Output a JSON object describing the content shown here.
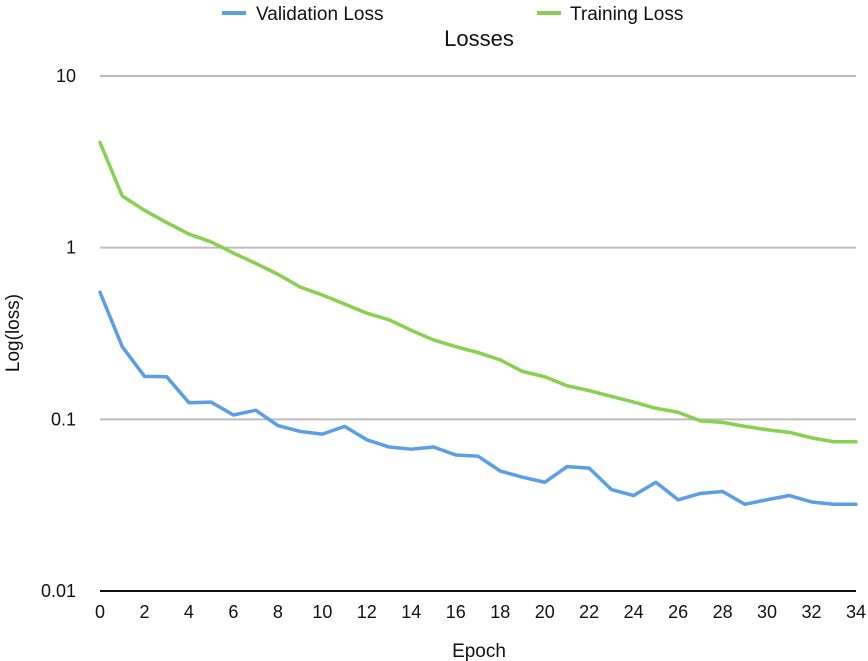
{
  "chart_data": {
    "type": "line",
    "title": "Losses",
    "xlabel": "Epoch",
    "ylabel": "Log(loss)",
    "yscale": "log",
    "ylim": [
      0.01,
      10
    ],
    "xlim": [
      0,
      34
    ],
    "grid": true,
    "legend_position": "top",
    "x_ticks": [
      0,
      2,
      4,
      6,
      8,
      10,
      12,
      14,
      16,
      18,
      20,
      22,
      24,
      26,
      28,
      30,
      32,
      34
    ],
    "x_tick_labels": [
      "0",
      "2",
      "4",
      "6",
      "8",
      "10",
      "12",
      "14",
      "16",
      "18",
      "20",
      "22",
      "24",
      "26",
      "28",
      "30",
      "32",
      "34"
    ],
    "y_ticks": [
      0.01,
      0.1,
      1,
      10
    ],
    "y_tick_labels": [
      "0.01",
      "0.1",
      "1",
      "10"
    ],
    "x": [
      0,
      1,
      2,
      3,
      4,
      5,
      6,
      7,
      8,
      9,
      10,
      11,
      12,
      13,
      14,
      15,
      16,
      17,
      18,
      19,
      20,
      21,
      22,
      23,
      24,
      25,
      26,
      27,
      28,
      29,
      30,
      31,
      32,
      33,
      34
    ],
    "series": [
      {
        "name": "Validation Loss",
        "color": "#5b9ee8",
        "values": [
          0.55,
          0.265,
          0.178,
          0.177,
          0.125,
          0.126,
          0.106,
          0.113,
          0.092,
          0.085,
          0.082,
          0.091,
          0.076,
          0.069,
          0.067,
          0.069,
          0.062,
          0.061,
          0.05,
          0.046,
          0.043,
          0.053,
          0.052,
          0.039,
          0.036,
          0.043,
          0.034,
          0.037,
          0.038,
          0.032,
          0.034,
          0.036,
          0.033,
          0.032,
          0.032
        ]
      },
      {
        "name": "Training Loss",
        "color": "#88d04f",
        "values": [
          4.1,
          2.0,
          1.65,
          1.4,
          1.2,
          1.08,
          0.93,
          0.81,
          0.7,
          0.59,
          0.53,
          0.47,
          0.415,
          0.38,
          0.33,
          0.29,
          0.265,
          0.245,
          0.222,
          0.19,
          0.177,
          0.157,
          0.147,
          0.136,
          0.126,
          0.116,
          0.11,
          0.098,
          0.096,
          0.091,
          0.087,
          0.084,
          0.078,
          0.074,
          0.074
        ]
      }
    ]
  }
}
